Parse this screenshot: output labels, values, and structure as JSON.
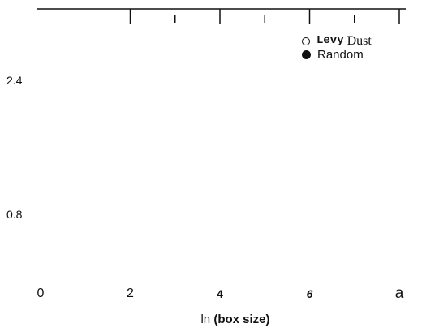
{
  "chart_data": {
    "type": "scatter",
    "title": "",
    "xlabel_prefix": "ln",
    "xlabel_bold": "(box size)",
    "ylabel": "",
    "x_tick_labels": [
      "0",
      "2",
      "4",
      "6",
      "a"
    ],
    "x_tick_values": [
      0,
      2,
      4,
      6,
      8
    ],
    "minor_tick_values": [
      3,
      5,
      7
    ],
    "y_tick_labels": [
      "2.4",
      "0.8"
    ],
    "y_tick_values": [
      2.4,
      0.8
    ],
    "xlim": [
      -0.3,
      8.3
    ],
    "ylim": [
      0.0,
      3.4
    ],
    "legend_placement": "top-right",
    "series": [
      {
        "name": "Levy Dust",
        "label_part1": "Levy",
        "label_part2": "Dust",
        "marker": "open-circle",
        "values": []
      },
      {
        "name": "Random",
        "marker": "filled-circle",
        "values": []
      }
    ],
    "colors": {
      "axis": "#111111",
      "text": "#111111"
    }
  }
}
